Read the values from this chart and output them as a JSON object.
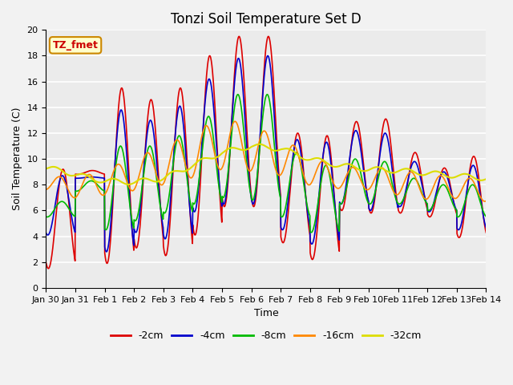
{
  "title": "Tonzi Soil Temperature Set D",
  "xlabel": "Time",
  "ylabel": "Soil Temperature (C)",
  "ylim": [
    0,
    20
  ],
  "xlim": [
    0,
    15
  ],
  "xtick_labels": [
    "Jan 30",
    "Jan 31",
    "Feb 1",
    "Feb 2",
    "Feb 3",
    "Feb 4",
    "Feb 5",
    "Feb 6",
    "Feb 7",
    "Feb 8",
    "Feb 9",
    "Feb 10",
    "Feb 11",
    "Feb 12",
    "Feb 13",
    "Feb 14"
  ],
  "legend_labels": [
    "-2cm",
    "-4cm",
    "-8cm",
    "-16cm",
    "-32cm"
  ],
  "colors": [
    "#dd0000",
    "#0000cc",
    "#00bb00",
    "#ff8800",
    "#dddd00"
  ],
  "line_widths": [
    1.2,
    1.2,
    1.2,
    1.2,
    1.5
  ],
  "bg_color": "#e8e8e8",
  "plot_bg": "#ebebeb",
  "annotation_text": "TZ_fmet",
  "annotation_bg": "#ffffcc",
  "annotation_border": "#cc8800",
  "title_fontsize": 12,
  "label_fontsize": 9,
  "tick_fontsize": 8
}
